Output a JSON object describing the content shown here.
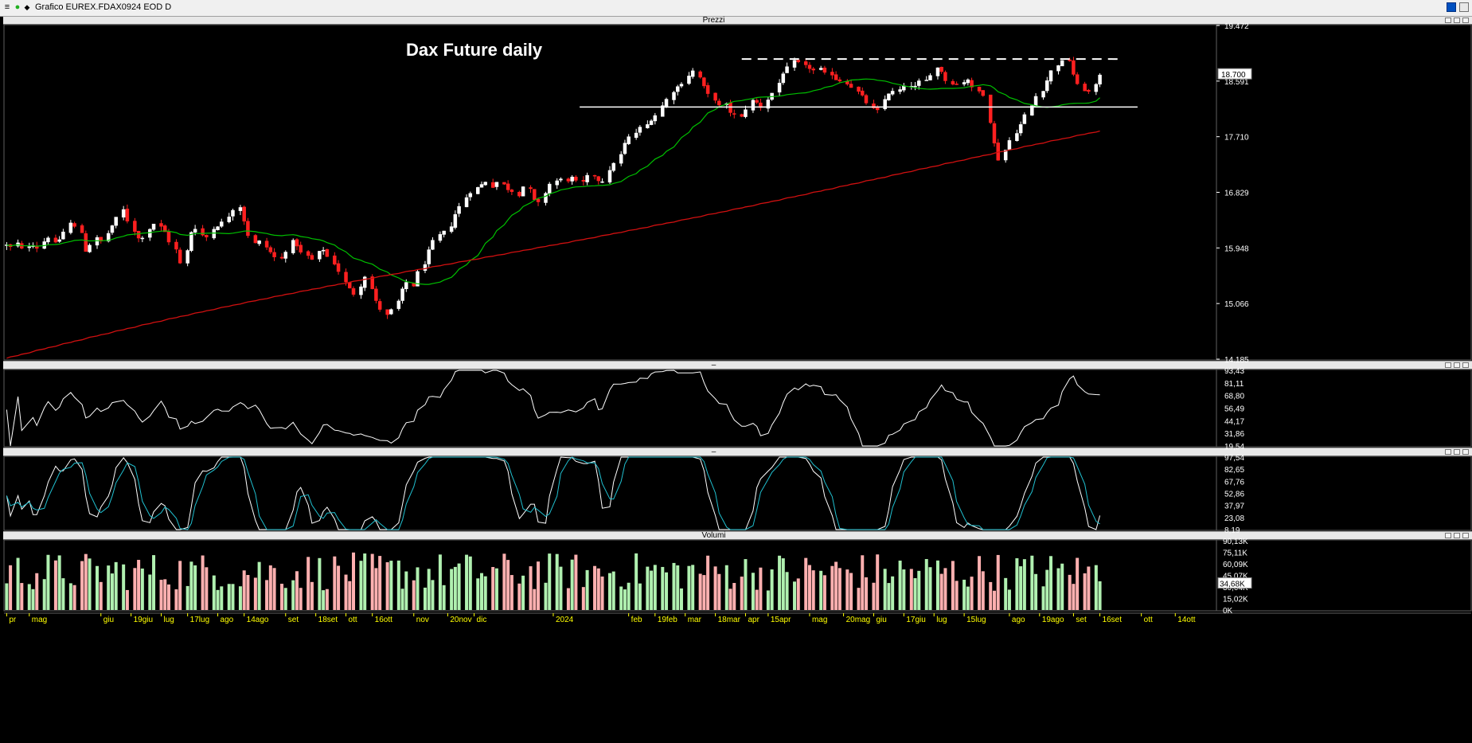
{
  "window": {
    "title": "Grafico EUREX.FDAX0924 EOD D"
  },
  "panes": {
    "price": {
      "label": "Prezzi"
    },
    "osc1": {
      "label": "–"
    },
    "osc2": {
      "label": "–"
    },
    "volume": {
      "label": "Volumi"
    }
  },
  "chart_data": [
    {
      "type": "candlestick",
      "pane": "price",
      "title": "Dax Future daily",
      "y_ticks": [
        "19.472",
        "18.591",
        "17.710",
        "16.829",
        "15.948",
        "15.066",
        "14.185"
      ],
      "ylim": [
        14185,
        19472
      ],
      "last_price_label": "18.700",
      "series": [
        {
          "name": "",
          "kind": "candles",
          "up_color": "#ffffff",
          "down_color": "#ff0000"
        },
        {
          "name": "",
          "kind": "moving-average-short",
          "color": "#00c000"
        },
        {
          "name": "",
          "kind": "moving-average-long",
          "color": "#d01010"
        }
      ],
      "price_path": [
        15990,
        15960,
        16020,
        15930,
        15980,
        16000,
        15950,
        16050,
        16120,
        16020,
        16080,
        16200,
        16340,
        16280,
        16190,
        15900,
        16000,
        16100,
        16050,
        16180,
        16300,
        16420,
        16550,
        16380,
        16220,
        16100,
        16120,
        16250,
        16330,
        16280,
        16200,
        16050,
        15920,
        15700,
        15900,
        16200,
        16260,
        16150,
        16120,
        16250,
        16300,
        16350,
        16450,
        16560,
        16600,
        16380,
        16150,
        16020,
        16050,
        15960,
        15880,
        15800,
        15780,
        15900,
        16050,
        15990,
        15870,
        15820,
        15760,
        15880,
        15920,
        15810,
        15700,
        15580,
        15400,
        15300,
        15220,
        15350,
        15500,
        15300,
        15100,
        14980,
        14880,
        14960,
        15100,
        15280,
        15400,
        15350,
        15560,
        15700,
        15900,
        16050,
        16150,
        16200,
        16300,
        16480,
        16600,
        16750,
        16830,
        16900,
        16950,
        17000,
        16920,
        16990,
        16950,
        16880,
        16850,
        16790,
        16920,
        16870,
        16700,
        16660,
        16820,
        16960,
        17010,
        17030,
        17020,
        17060,
        17000,
        16990,
        17080,
        17100,
        17020,
        17010,
        17160,
        17300,
        17420,
        17600,
        17700,
        17770,
        17850,
        17900,
        17980,
        18050,
        18200,
        18300,
        18430,
        18500,
        18560,
        18680,
        18750,
        18650,
        18500,
        18380,
        18300,
        18200,
        18220,
        18100,
        18060,
        18020,
        18150,
        18280,
        18250,
        18180,
        18300,
        18400,
        18560,
        18720,
        18800,
        18900,
        18880,
        18830,
        18800,
        18760,
        18780,
        18710,
        18700,
        18620,
        18600,
        18560,
        18500,
        18420,
        18350,
        18250,
        18150,
        18120,
        18300,
        18400,
        18420,
        18450,
        18500,
        18520,
        18500,
        18580,
        18600,
        18700,
        18800,
        18750,
        18600,
        18560,
        18540,
        18580,
        18620,
        18480,
        18430,
        18380,
        17950,
        17600,
        17350,
        17500,
        17650,
        17780,
        17900,
        18050,
        18200,
        18350,
        18450,
        18600,
        18750,
        18850,
        18900,
        18920,
        18700,
        18530,
        18450,
        18420,
        18520,
        18700
      ],
      "annotations": [
        {
          "kind": "dashed-resistance",
          "value": 18940,
          "color": "#ffffff"
        },
        {
          "kind": "support",
          "value": 18180,
          "color": "#ffffff"
        }
      ]
    },
    {
      "type": "line",
      "pane": "osc1",
      "y_ticks": [
        "93,43",
        "81,11",
        "68,80",
        "56,49",
        "44,17",
        "31,86",
        "19,54"
      ],
      "ylim": [
        19.54,
        93.43
      ],
      "series": [
        {
          "name": "",
          "color": "#ffffff"
        }
      ]
    },
    {
      "type": "line",
      "pane": "osc2",
      "y_ticks": [
        "97,54",
        "82,65",
        "67,76",
        "52,86",
        "37,97",
        "23,08",
        "8,19"
      ],
      "ylim": [
        8.19,
        97.54
      ],
      "series": [
        {
          "name": "",
          "color": "#ffffff"
        },
        {
          "name": "",
          "color": "#20c0d0"
        }
      ]
    },
    {
      "type": "bar",
      "pane": "volume",
      "y_ticks": [
        "90,13K",
        "75,11K",
        "60,09K",
        "45,07K",
        "30,04K",
        "15,02K",
        "0K"
      ],
      "ylim": [
        0,
        90130
      ],
      "last_value_label": "34,68K",
      "up_color": "#b0f0b0",
      "down_color": "#ffb0b0"
    }
  ],
  "x_axis": {
    "labels": [
      {
        "t": "pr",
        "i": 0
      },
      {
        "t": "mag",
        "i": 6
      },
      {
        "t": "giu",
        "i": 25
      },
      {
        "t": "19giu",
        "i": 33
      },
      {
        "t": "lug",
        "i": 41
      },
      {
        "t": "17lug",
        "i": 48
      },
      {
        "t": "ago",
        "i": 56
      },
      {
        "t": "14ago",
        "i": 63
      },
      {
        "t": "set",
        "i": 74
      },
      {
        "t": "18set",
        "i": 82
      },
      {
        "t": "ott",
        "i": 90
      },
      {
        "t": "16ott",
        "i": 97
      },
      {
        "t": "nov",
        "i": 108
      },
      {
        "t": "20nov",
        "i": 117
      },
      {
        "t": "dic",
        "i": 124
      },
      {
        "t": "2024",
        "i": 145
      },
      {
        "t": "feb",
        "i": 165
      },
      {
        "t": "19feb",
        "i": 172
      },
      {
        "t": "mar",
        "i": 180
      },
      {
        "t": "18mar",
        "i": 188
      },
      {
        "t": "apr",
        "i": 196
      },
      {
        "t": "15apr",
        "i": 202
      },
      {
        "t": "mag",
        "i": 213
      },
      {
        "t": "20mag",
        "i": 222
      },
      {
        "t": "giu",
        "i": 230
      },
      {
        "t": "17giu",
        "i": 238
      },
      {
        "t": "lug",
        "i": 246
      },
      {
        "t": "15lug",
        "i": 254
      },
      {
        "t": "ago",
        "i": 266
      },
      {
        "t": "19ago",
        "i": 274
      },
      {
        "t": "set",
        "i": 283
      },
      {
        "t": "16set",
        "i": 290
      },
      {
        "t": "ott",
        "i": 301
      },
      {
        "t": "14ott",
        "i": 310
      }
    ]
  }
}
